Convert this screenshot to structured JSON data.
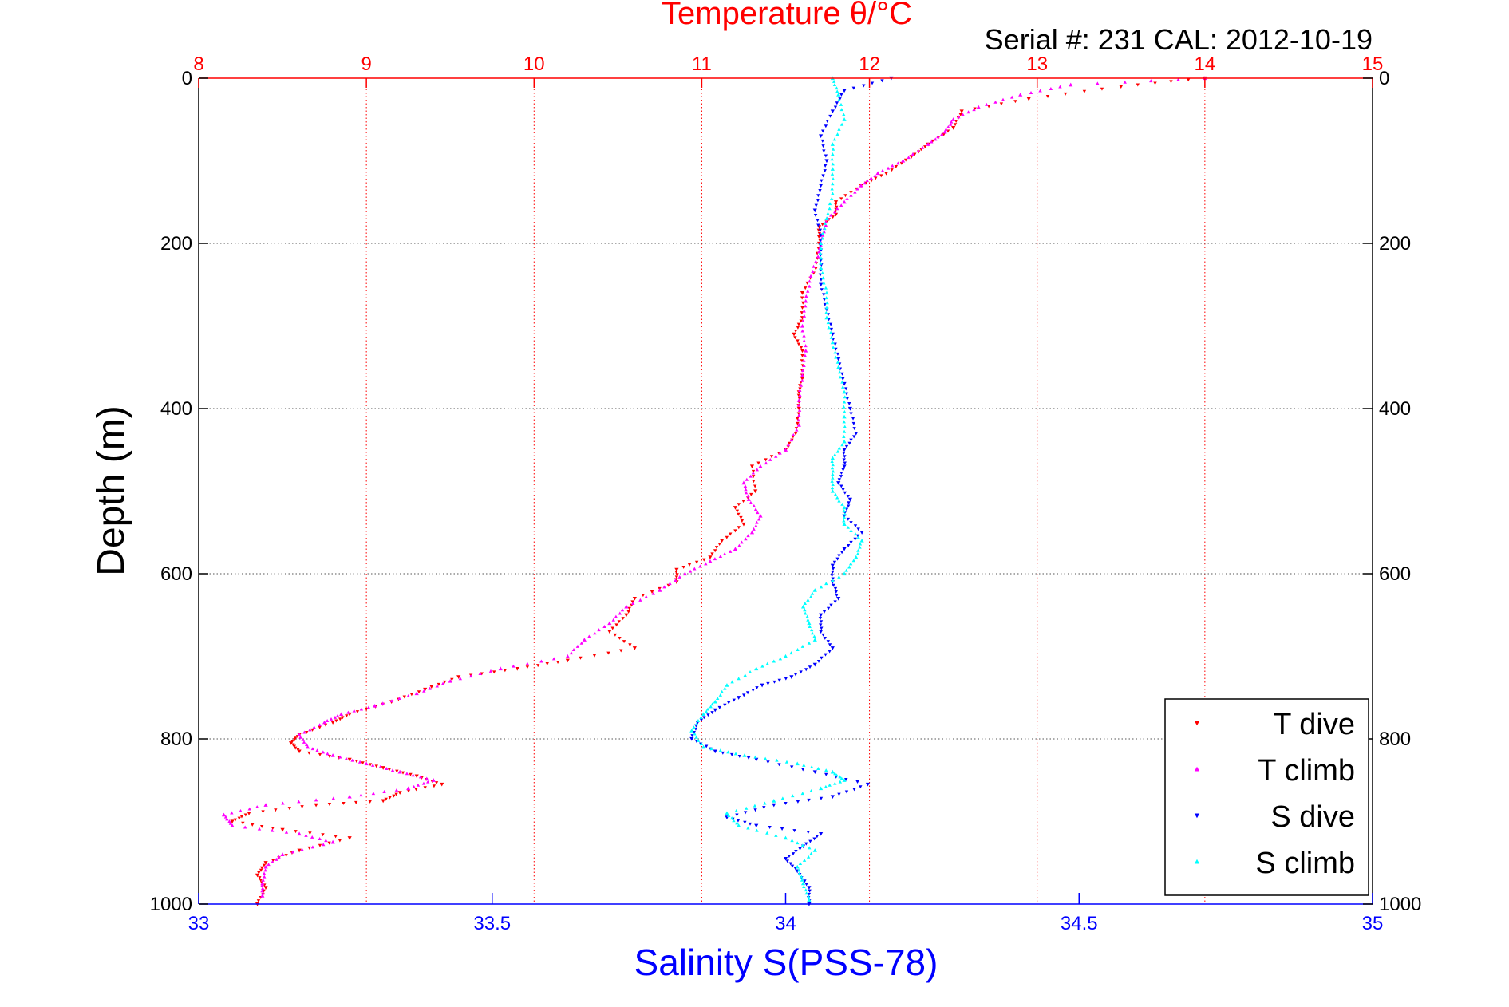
{
  "chart_data": {
    "type": "scatter",
    "title": "Temperature θ/°C",
    "subtitle": "Serial #: 231  CAL: 2012-10-19",
    "xlabel": "Salinity S(PSS-78)",
    "ylabel": "Depth (m)",
    "x_bottom": {
      "label": "Salinity S(PSS-78)",
      "range": [
        33,
        35
      ],
      "ticks": [
        33,
        33.5,
        34,
        34.5,
        35
      ],
      "tick_labels": [
        "33",
        "33.5",
        "34",
        "34.5",
        "35"
      ]
    },
    "x_top": {
      "label": "Temperature θ/°C",
      "range": [
        8,
        15
      ],
      "ticks": [
        8,
        9,
        10,
        11,
        12,
        13,
        14,
        15
      ],
      "tick_labels": [
        "8",
        "9",
        "10",
        "11",
        "12",
        "13",
        "14",
        "15"
      ]
    },
    "y": {
      "label": "Depth (m)",
      "range": [
        0,
        1000
      ],
      "reversed": true,
      "ticks": [
        0,
        200,
        400,
        600,
        800,
        1000
      ],
      "tick_labels": [
        "0",
        "200",
        "400",
        "600",
        "800",
        "1000"
      ]
    },
    "grid": true,
    "legend_position": "bottom-right",
    "series": [
      {
        "name": "T dive",
        "axis": "top",
        "color": "#ff0000",
        "marker": "triangle-down",
        "points": [
          [
            14.0,
            0
          ],
          [
            13.5,
            10
          ],
          [
            12.95,
            25
          ],
          [
            12.55,
            40
          ],
          [
            12.5,
            60
          ],
          [
            12.35,
            80
          ],
          [
            12.25,
            95
          ],
          [
            12.1,
            115
          ],
          [
            11.95,
            130
          ],
          [
            11.8,
            150
          ],
          [
            11.8,
            165
          ],
          [
            11.7,
            180
          ],
          [
            11.7,
            200
          ],
          [
            11.68,
            230
          ],
          [
            11.6,
            260
          ],
          [
            11.6,
            290
          ],
          [
            11.55,
            310
          ],
          [
            11.6,
            330
          ],
          [
            11.6,
            360
          ],
          [
            11.58,
            380
          ],
          [
            11.58,
            400
          ],
          [
            11.56,
            430
          ],
          [
            11.5,
            450
          ],
          [
            11.3,
            470
          ],
          [
            11.32,
            500
          ],
          [
            11.2,
            520
          ],
          [
            11.25,
            540
          ],
          [
            11.12,
            560
          ],
          [
            11.05,
            580
          ],
          [
            10.85,
            595
          ],
          [
            10.85,
            610
          ],
          [
            10.6,
            630
          ],
          [
            10.55,
            650
          ],
          [
            10.45,
            670
          ],
          [
            10.6,
            690
          ],
          [
            10.2,
            705
          ],
          [
            9.9,
            715
          ],
          [
            9.55,
            725
          ],
          [
            9.35,
            740
          ],
          [
            9.15,
            755
          ],
          [
            8.9,
            770
          ],
          [
            8.8,
            780
          ],
          [
            8.6,
            795
          ],
          [
            8.55,
            805
          ],
          [
            8.6,
            815
          ],
          [
            8.9,
            825
          ],
          [
            9.1,
            835
          ],
          [
            9.3,
            845
          ],
          [
            9.45,
            855
          ],
          [
            9.2,
            865
          ],
          [
            9.1,
            875
          ],
          [
            8.7,
            880
          ],
          [
            8.3,
            890
          ],
          [
            8.2,
            900
          ],
          [
            8.5,
            910
          ],
          [
            8.9,
            920
          ],
          [
            8.6,
            935
          ],
          [
            8.4,
            950
          ],
          [
            8.35,
            965
          ],
          [
            8.4,
            980
          ],
          [
            8.35,
            1000
          ]
        ]
      },
      {
        "name": "T climb",
        "axis": "top",
        "color": "#ff00ff",
        "marker": "triangle-up",
        "points": [
          [
            14.0,
            0
          ],
          [
            13.2,
            8
          ],
          [
            12.9,
            20
          ],
          [
            12.65,
            35
          ],
          [
            12.5,
            50
          ],
          [
            12.45,
            65
          ],
          [
            12.35,
            80
          ],
          [
            12.2,
            100
          ],
          [
            12.05,
            115
          ],
          [
            11.95,
            130
          ],
          [
            11.85,
            150
          ],
          [
            11.75,
            170
          ],
          [
            11.72,
            190
          ],
          [
            11.7,
            210
          ],
          [
            11.65,
            240
          ],
          [
            11.62,
            270
          ],
          [
            11.6,
            300
          ],
          [
            11.62,
            330
          ],
          [
            11.6,
            360
          ],
          [
            11.58,
            390
          ],
          [
            11.58,
            420
          ],
          [
            11.5,
            450
          ],
          [
            11.35,
            470
          ],
          [
            11.25,
            490
          ],
          [
            11.28,
            510
          ],
          [
            11.35,
            530
          ],
          [
            11.3,
            550
          ],
          [
            11.2,
            570
          ],
          [
            11.05,
            585
          ],
          [
            10.9,
            600
          ],
          [
            10.75,
            620
          ],
          [
            10.55,
            640
          ],
          [
            10.45,
            660
          ],
          [
            10.3,
            680
          ],
          [
            10.2,
            700
          ],
          [
            9.8,
            715
          ],
          [
            9.5,
            730
          ],
          [
            9.3,
            745
          ],
          [
            9.05,
            760
          ],
          [
            8.85,
            770
          ],
          [
            8.75,
            780
          ],
          [
            8.6,
            795
          ],
          [
            8.65,
            810
          ],
          [
            8.8,
            820
          ],
          [
            9.0,
            830
          ],
          [
            9.2,
            840
          ],
          [
            9.4,
            850
          ],
          [
            9.25,
            860
          ],
          [
            8.9,
            870
          ],
          [
            8.4,
            880
          ],
          [
            8.15,
            892
          ],
          [
            8.2,
            905
          ],
          [
            8.6,
            915
          ],
          [
            8.8,
            925
          ],
          [
            8.5,
            940
          ],
          [
            8.4,
            955
          ],
          [
            8.38,
            975
          ],
          [
            8.38,
            990
          ]
        ]
      },
      {
        "name": "S dive",
        "axis": "bottom",
        "color": "#0000ff",
        "marker": "triangle-down",
        "points": [
          [
            34.18,
            0
          ],
          [
            34.1,
            15
          ],
          [
            34.08,
            40
          ],
          [
            34.06,
            70
          ],
          [
            34.07,
            100
          ],
          [
            34.06,
            130
          ],
          [
            34.05,
            160
          ],
          [
            34.06,
            190
          ],
          [
            34.06,
            220
          ],
          [
            34.06,
            250
          ],
          [
            34.07,
            280
          ],
          [
            34.08,
            310
          ],
          [
            34.09,
            340
          ],
          [
            34.1,
            370
          ],
          [
            34.11,
            400
          ],
          [
            34.12,
            430
          ],
          [
            34.1,
            450
          ],
          [
            34.1,
            470
          ],
          [
            34.09,
            490
          ],
          [
            34.11,
            510
          ],
          [
            34.1,
            530
          ],
          [
            34.13,
            550
          ],
          [
            34.1,
            570
          ],
          [
            34.08,
            590
          ],
          [
            34.08,
            610
          ],
          [
            34.09,
            630
          ],
          [
            34.06,
            650
          ],
          [
            34.06,
            670
          ],
          [
            34.08,
            690
          ],
          [
            34.05,
            710
          ],
          [
            34.01,
            725
          ],
          [
            33.96,
            735
          ],
          [
            33.92,
            750
          ],
          [
            33.88,
            765
          ],
          [
            33.85,
            780
          ],
          [
            33.84,
            800
          ],
          [
            33.88,
            815
          ],
          [
            33.95,
            825
          ],
          [
            34.05,
            840
          ],
          [
            34.14,
            855
          ],
          [
            34.08,
            870
          ],
          [
            33.98,
            880
          ],
          [
            33.9,
            895
          ],
          [
            33.95,
            905
          ],
          [
            34.06,
            915
          ],
          [
            34.03,
            930
          ],
          [
            34.0,
            945
          ],
          [
            34.02,
            960
          ],
          [
            34.04,
            980
          ],
          [
            34.04,
            1000
          ]
        ]
      },
      {
        "name": "S climb",
        "axis": "bottom",
        "color": "#00ffff",
        "marker": "triangle-up",
        "points": [
          [
            34.08,
            0
          ],
          [
            34.09,
            20
          ],
          [
            34.1,
            50
          ],
          [
            34.08,
            80
          ],
          [
            34.08,
            110
          ],
          [
            34.08,
            140
          ],
          [
            34.07,
            170
          ],
          [
            34.06,
            200
          ],
          [
            34.06,
            230
          ],
          [
            34.07,
            260
          ],
          [
            34.07,
            290
          ],
          [
            34.08,
            320
          ],
          [
            34.09,
            350
          ],
          [
            34.1,
            380
          ],
          [
            34.1,
            410
          ],
          [
            34.1,
            440
          ],
          [
            34.08,
            460
          ],
          [
            34.08,
            480
          ],
          [
            34.08,
            500
          ],
          [
            34.1,
            520
          ],
          [
            34.1,
            540
          ],
          [
            34.13,
            560
          ],
          [
            34.12,
            580
          ],
          [
            34.1,
            600
          ],
          [
            34.05,
            620
          ],
          [
            34.03,
            640
          ],
          [
            34.04,
            660
          ],
          [
            34.05,
            680
          ],
          [
            34.0,
            700
          ],
          [
            33.95,
            715
          ],
          [
            33.9,
            735
          ],
          [
            33.88,
            755
          ],
          [
            33.86,
            770
          ],
          [
            33.84,
            790
          ],
          [
            33.86,
            810
          ],
          [
            33.93,
            820
          ],
          [
            34.02,
            830
          ],
          [
            34.08,
            840
          ],
          [
            34.1,
            850
          ],
          [
            34.06,
            860
          ],
          [
            33.98,
            875
          ],
          [
            33.9,
            890
          ],
          [
            33.92,
            905
          ],
          [
            34.0,
            920
          ],
          [
            34.05,
            935
          ],
          [
            34.02,
            955
          ],
          [
            34.03,
            975
          ],
          [
            34.04,
            995
          ]
        ]
      }
    ]
  }
}
